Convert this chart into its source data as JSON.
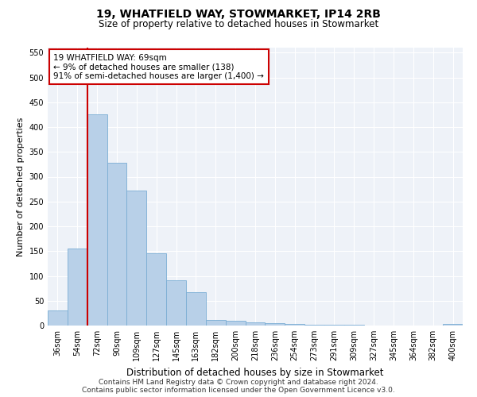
{
  "title": "19, WHATFIELD WAY, STOWMARKET, IP14 2RB",
  "subtitle": "Size of property relative to detached houses in Stowmarket",
  "xlabel": "Distribution of detached houses by size in Stowmarket",
  "ylabel": "Number of detached properties",
  "categories": [
    "36sqm",
    "54sqm",
    "72sqm",
    "90sqm",
    "109sqm",
    "127sqm",
    "145sqm",
    "163sqm",
    "182sqm",
    "200sqm",
    "218sqm",
    "236sqm",
    "254sqm",
    "273sqm",
    "291sqm",
    "309sqm",
    "327sqm",
    "345sqm",
    "364sqm",
    "382sqm",
    "400sqm"
  ],
  "values": [
    30,
    155,
    425,
    328,
    272,
    146,
    92,
    68,
    12,
    9,
    7,
    5,
    3,
    2,
    1,
    1,
    0,
    0,
    0,
    0,
    3
  ],
  "bar_color": "#b8d0e8",
  "bar_edge_color": "#7aadd4",
  "vline_x_index": 2,
  "vline_color": "#cc0000",
  "annotation_text": "19 WHATFIELD WAY: 69sqm\n← 9% of detached houses are smaller (138)\n91% of semi-detached houses are larger (1,400) →",
  "annotation_box_color": "#ffffff",
  "annotation_box_edge_color": "#cc0000",
  "ylim": [
    0,
    560
  ],
  "yticks": [
    0,
    50,
    100,
    150,
    200,
    250,
    300,
    350,
    400,
    450,
    500,
    550
  ],
  "footer_line1": "Contains HM Land Registry data © Crown copyright and database right 2024.",
  "footer_line2": "Contains public sector information licensed under the Open Government Licence v3.0.",
  "bg_color": "#eef2f8",
  "title_fontsize": 10,
  "subtitle_fontsize": 8.5,
  "tick_fontsize": 7,
  "ylabel_fontsize": 8,
  "xlabel_fontsize": 8.5,
  "footer_fontsize": 6.5,
  "annotation_fontsize": 7.5
}
